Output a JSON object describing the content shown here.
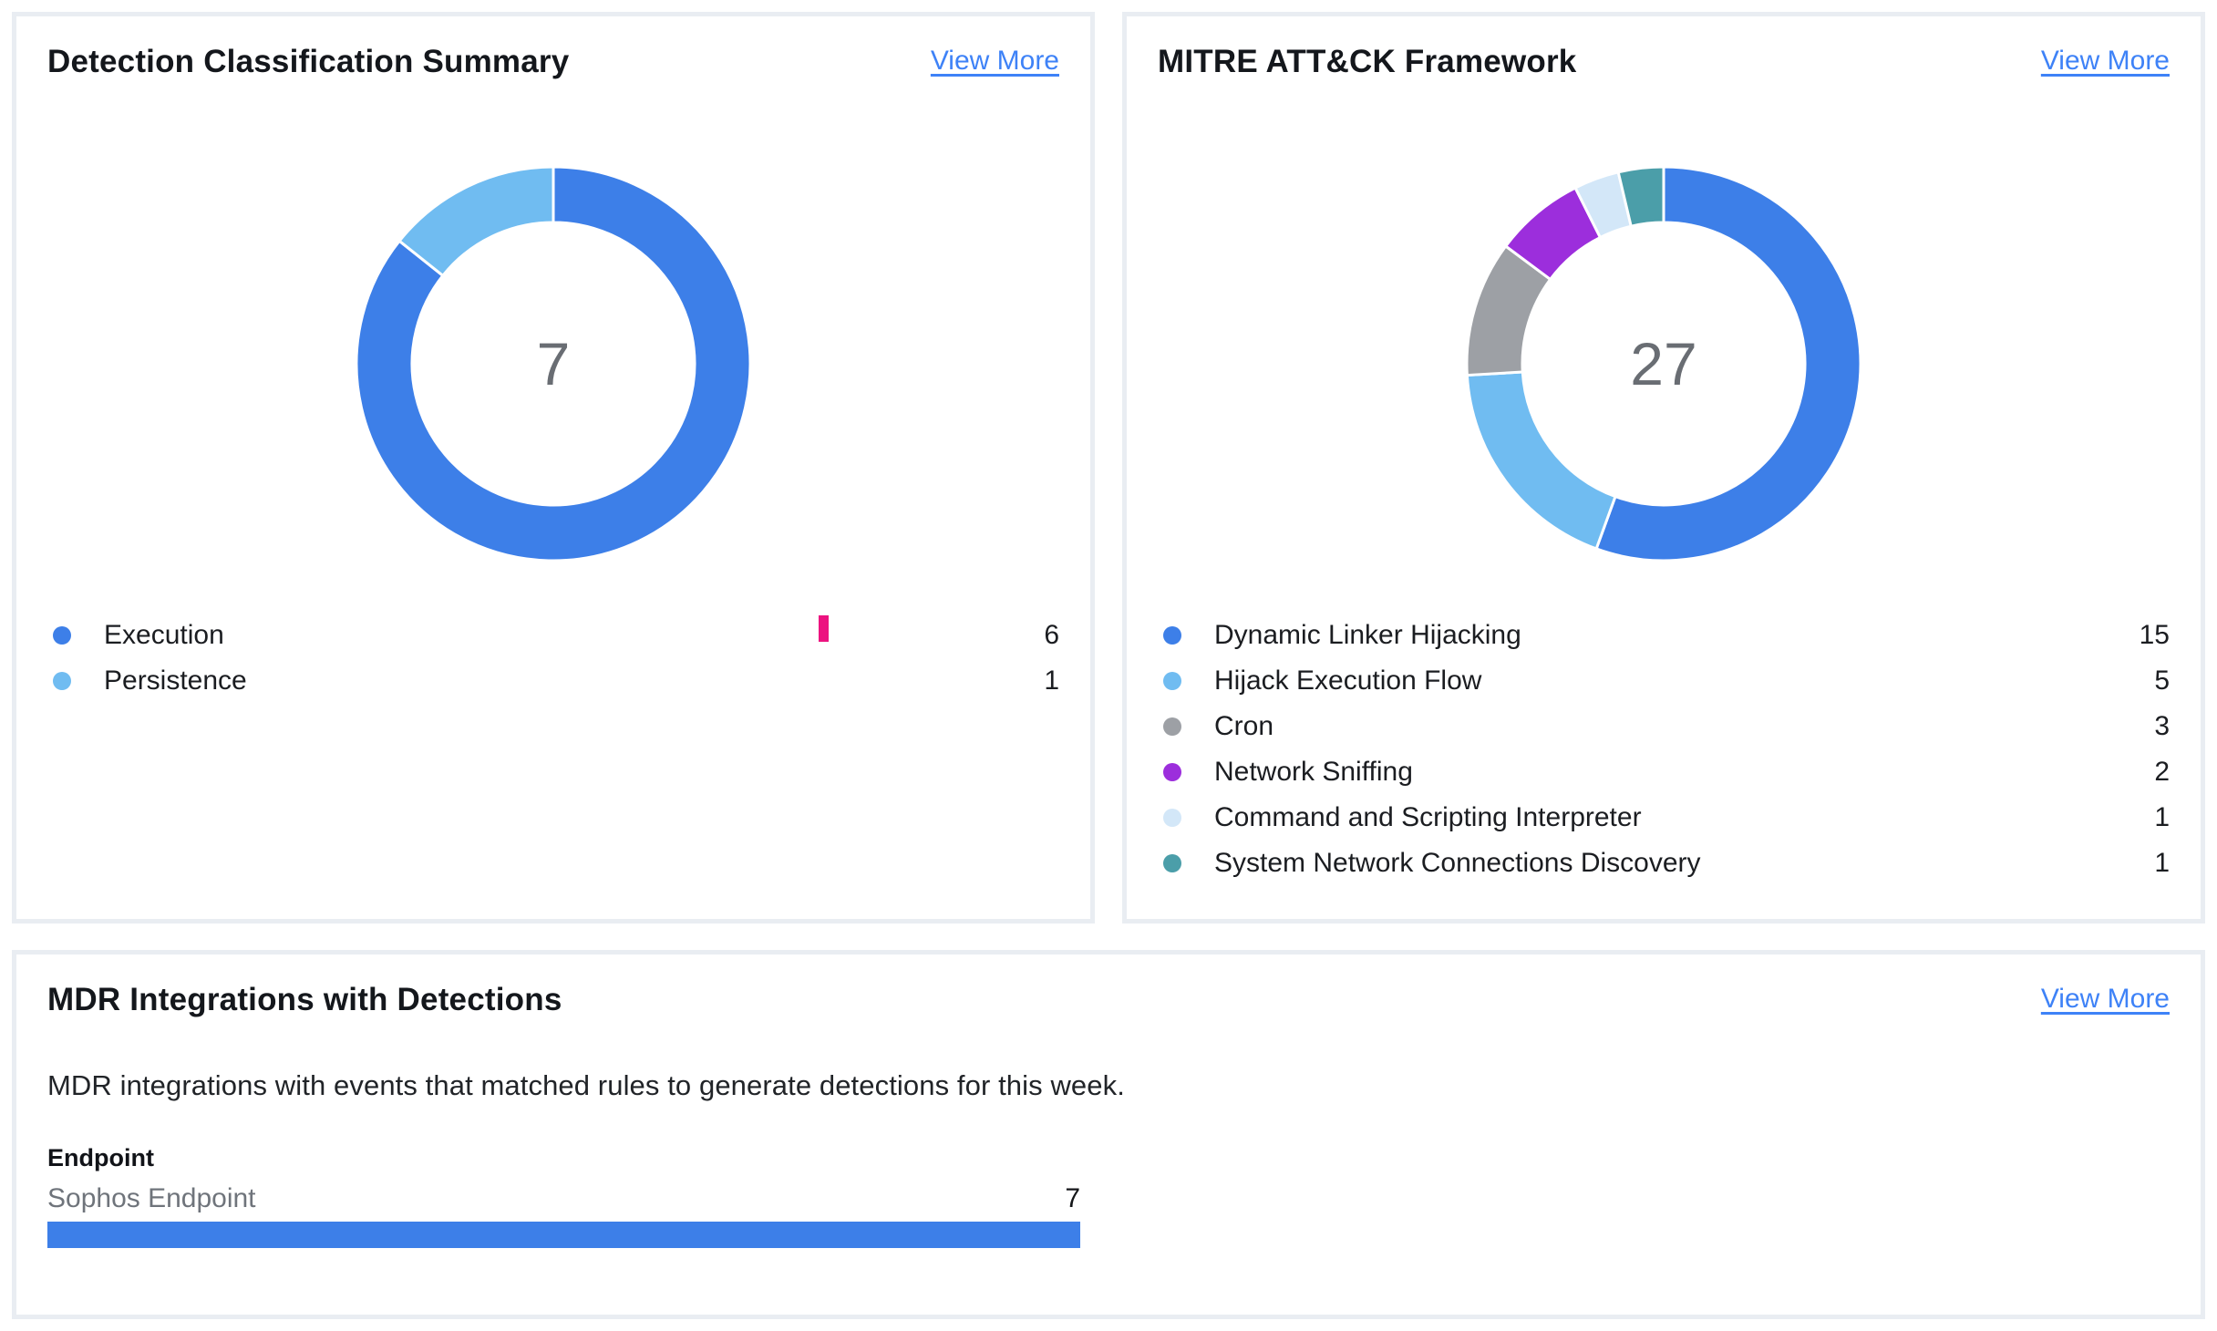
{
  "page": {
    "background": "#FFFFFF",
    "card_border": "#E9EDF2",
    "link_color": "#3E82F7"
  },
  "cards": {
    "detection_summary": {
      "title": "Detection Classification Summary",
      "view_more": "View More"
    },
    "mitre": {
      "title": "MITRE ATT&CK Framework",
      "view_more": "View More"
    },
    "integrations": {
      "title": "MDR Integrations with Detections",
      "view_more": "View More",
      "description": "MDR integrations with events that matched rules to generate detections for this week.",
      "group_label": "Endpoint"
    }
  },
  "marker": {
    "color": "#EC1380"
  },
  "chart_data": [
    {
      "type": "pie",
      "variant": "donut",
      "title": "Detection Classification Summary",
      "center_label": "7",
      "total": 7,
      "labels": [
        "Execution",
        "Persistence"
      ],
      "values": [
        6,
        1
      ],
      "colors": [
        "#3D7FE8",
        "#70BCF1"
      ],
      "center_label_color": "#696D73",
      "legend_position": "bottom"
    },
    {
      "type": "pie",
      "variant": "donut",
      "title": "MITRE ATT&CK Framework",
      "center_label": "27",
      "total": 27,
      "labels": [
        "Dynamic Linker Hijacking",
        "Hijack Execution Flow",
        "Cron",
        "Network Sniffing",
        "Command and Scripting Interpreter",
        "System Network Connections Discovery"
      ],
      "values": [
        15,
        5,
        3,
        2,
        1,
        1
      ],
      "colors": [
        "#3D7FE8",
        "#70BCF1",
        "#9DA0A5",
        "#9C2EDC",
        "#D3E7F8",
        "#4B9EA9"
      ],
      "center_label_color": "#696D73",
      "legend_position": "bottom"
    },
    {
      "type": "bar",
      "orientation": "horizontal",
      "title": "MDR Integrations with Detections",
      "group": "Endpoint",
      "categories": [
        "Sophos Endpoint"
      ],
      "values": [
        7
      ],
      "xlim": [
        0,
        7
      ],
      "bar_color": "#3D7FE8"
    }
  ]
}
